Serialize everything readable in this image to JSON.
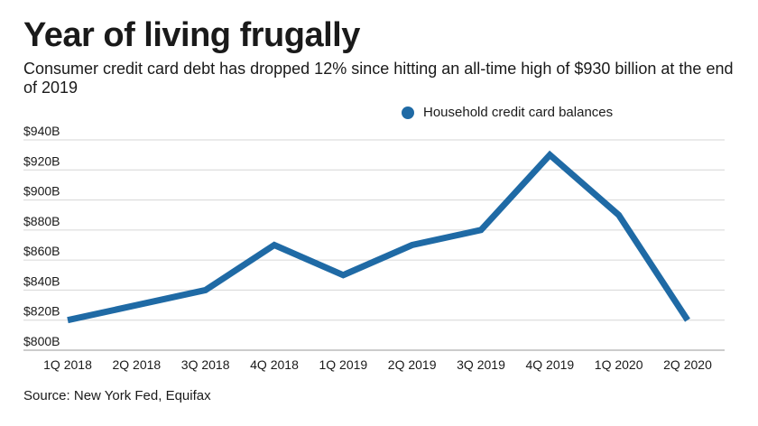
{
  "header": {
    "title": "Year of living frugally",
    "subtitle": "Consumer credit card debt has dropped 12% since hitting an all-time high of $930 billion at the end of 2019"
  },
  "legend": {
    "label": "Household credit card balances",
    "color": "#1f6aa5"
  },
  "source": "Source: New York Fed, Equifax",
  "chart_data": {
    "type": "line",
    "title": "Year of living frugally",
    "xlabel": "",
    "ylabel": "",
    "categories": [
      "1Q 2018",
      "2Q 2018",
      "3Q 2018",
      "4Q 2018",
      "1Q 2019",
      "2Q 2019",
      "3Q 2019",
      "4Q 2019",
      "1Q 2020",
      "2Q 2020"
    ],
    "series": [
      {
        "name": "Household credit card balances",
        "color": "#1f6aa5",
        "values": [
          820,
          830,
          840,
          870,
          850,
          870,
          880,
          930,
          890,
          820
        ]
      }
    ],
    "ylim": [
      800,
      940
    ],
    "yticks": [
      800,
      820,
      840,
      860,
      880,
      900,
      920,
      940
    ],
    "ytick_labels": [
      "$800B",
      "$820B",
      "$840B",
      "$860B",
      "$880B",
      "$900B",
      "$920B",
      "$940B"
    ],
    "grid": true,
    "legend_position": "top-right"
  }
}
